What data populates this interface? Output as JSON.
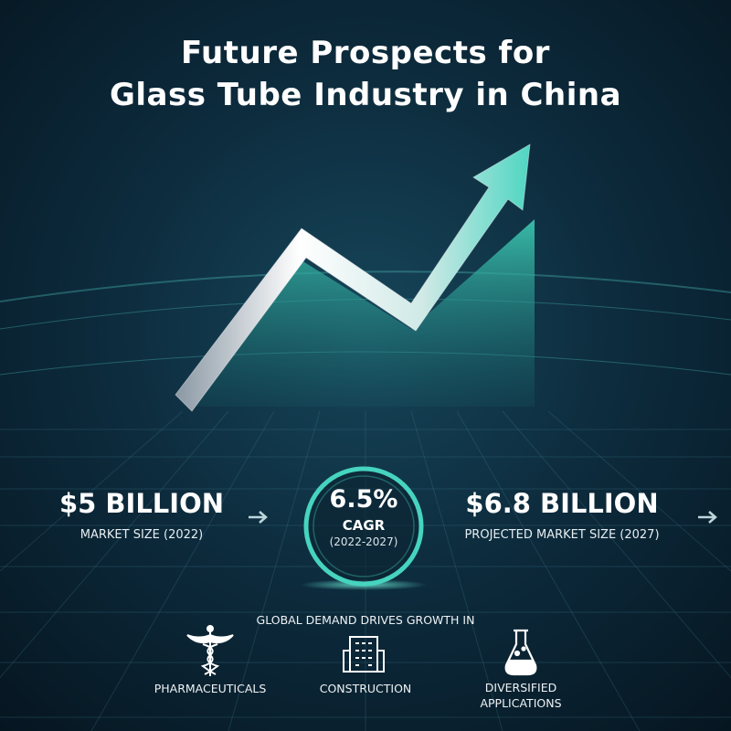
{
  "header": {
    "title_lines": [
      "Future Prospects for",
      "Glass Tube Industry in China"
    ]
  },
  "stats": {
    "current": {
      "value": "$5 BILLION",
      "label": "MARKET SIZE (2022)"
    },
    "growth": {
      "value": "6.5%",
      "label": "CAGR",
      "period": "(2022-2027)"
    },
    "projected": {
      "value": "$6.8 BILLION",
      "label": "PROJECTED MARKET SIZE (2027)"
    }
  },
  "drivers": {
    "heading": "GLOBAL DEMAND DRIVES GROWTH IN",
    "items": [
      "PHARMACEUTICALS",
      "CONSTRUCTION",
      "DIVERSIFIED APPLICATIONS"
    ]
  }
}
